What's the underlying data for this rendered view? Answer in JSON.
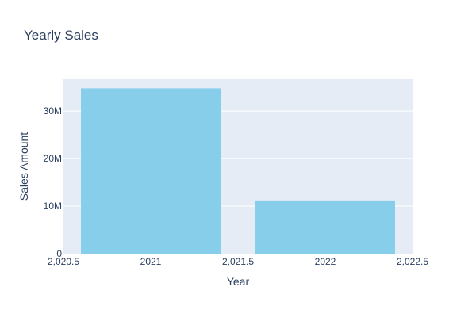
{
  "chart_data": {
    "type": "bar",
    "title": "Yearly Sales",
    "xlabel": "Year",
    "ylabel": "Sales Amount",
    "categories": [
      2021,
      2022
    ],
    "values": [
      34800000,
      11200000
    ],
    "xlim": [
      2020.5,
      2022.5
    ],
    "ylim": [
      0,
      36700000
    ],
    "x_ticks": [
      2020.5,
      2021,
      2021.5,
      2022,
      2022.5
    ],
    "x_tick_labels": [
      "2,020.5",
      "2021",
      "2,021.5",
      "2022",
      "2,022.5"
    ],
    "y_ticks": [
      0,
      10000000,
      20000000,
      30000000
    ],
    "y_tick_labels": [
      "0",
      "10M",
      "20M",
      "30M"
    ],
    "bar_width": 0.8,
    "grid": true,
    "legend": "none",
    "colors": {
      "bar": "#87ceeb",
      "plot_background": "#e5ecf6",
      "grid": "#ffffff",
      "text": "#2a3f5f"
    }
  }
}
